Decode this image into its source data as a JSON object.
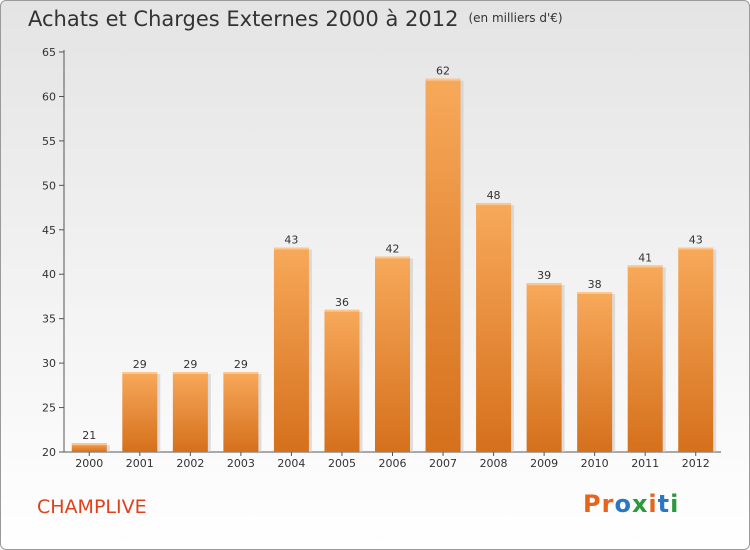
{
  "header": {
    "title": "Achats et Charges Externes 2000 à 2012",
    "unit": "(en milliers d'€)"
  },
  "footer": {
    "commune": "CHAMPLIVE",
    "logo": "Proxiti"
  },
  "colors": {
    "bar_light": "#f7a95a",
    "bar_dark": "#d5701c",
    "commune": "#e0401a",
    "logo_letters": [
      "#e8631c",
      "#e8631c",
      "#2b78c2",
      "#2b9a3c",
      "#e8631c",
      "#2b78c2",
      "#2b9a3c"
    ]
  },
  "chart_data": {
    "type": "bar",
    "title": "Achats et Charges Externes 2000 à 2012",
    "subtitle": "(en milliers d'€)",
    "categories": [
      "2000",
      "2001",
      "2002",
      "2003",
      "2004",
      "2005",
      "2006",
      "2007",
      "2008",
      "2009",
      "2010",
      "2011",
      "2012"
    ],
    "values": [
      21,
      29,
      29,
      29,
      43,
      36,
      42,
      62,
      48,
      39,
      38,
      41,
      43
    ],
    "ylim": [
      20,
      65
    ],
    "yticks": [
      20,
      25,
      30,
      35,
      40,
      45,
      50,
      55,
      60,
      65
    ],
    "grid": false,
    "legend": "none"
  }
}
